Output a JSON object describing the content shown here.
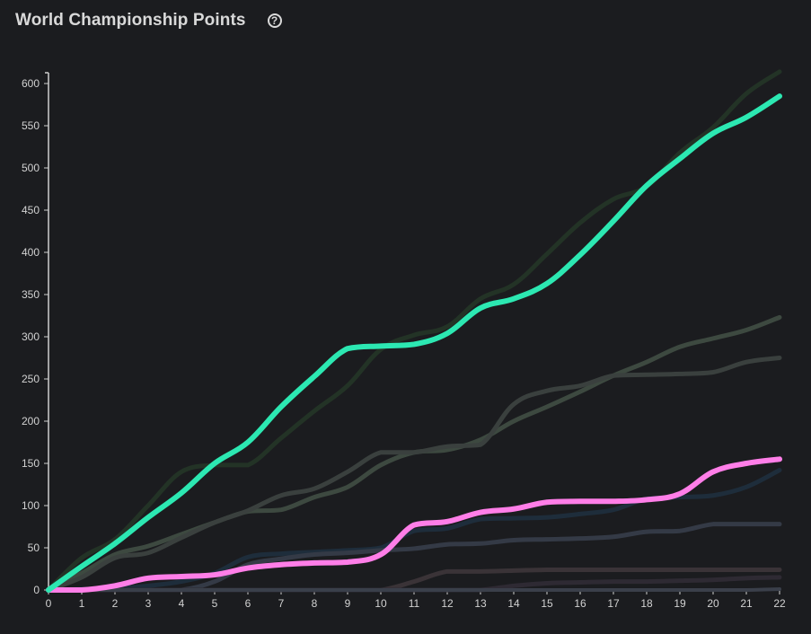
{
  "header": {
    "title": "World Championship Points",
    "help_icon": "question-circle-icon"
  },
  "chart_data": {
    "type": "line",
    "title": "World Championship Points",
    "xlabel": "",
    "ylabel": "",
    "xlim": [
      0,
      22
    ],
    "ylim": [
      0,
      600
    ],
    "x_ticks": [
      0,
      1,
      2,
      3,
      4,
      5,
      6,
      7,
      8,
      9,
      10,
      11,
      12,
      13,
      14,
      15,
      16,
      17,
      18,
      19,
      20,
      21,
      22
    ],
    "y_ticks": [
      0,
      50,
      100,
      150,
      200,
      250,
      300,
      350,
      400,
      450,
      500,
      550,
      600
    ],
    "grid": false,
    "legend": "none",
    "x": [
      0,
      1,
      2,
      3,
      4,
      5,
      6,
      7,
      8,
      9,
      10,
      11,
      12,
      13,
      14,
      15,
      16,
      17,
      18,
      19,
      20,
      21,
      22
    ],
    "series": [
      {
        "color": "#233326",
        "width": 5,
        "values": [
          0,
          38,
          60,
          100,
          140,
          148,
          148,
          180,
          212,
          242,
          285,
          302,
          312,
          345,
          362,
          398,
          435,
          463,
          478,
          518,
          548,
          588,
          614
        ]
      },
      {
        "color": "#3d4940",
        "width": 5,
        "values": [
          0,
          20,
          42,
          52,
          66,
          80,
          93,
          95,
          110,
          122,
          148,
          163,
          166,
          178,
          200,
          217,
          235,
          254,
          270,
          288,
          298,
          308,
          323
        ]
      },
      {
        "color": "#3a403e",
        "width": 5,
        "values": [
          0,
          15,
          38,
          44,
          62,
          80,
          94,
          112,
          120,
          140,
          163,
          163,
          170,
          172,
          220,
          236,
          242,
          254,
          255,
          256,
          258,
          270,
          275
        ]
      },
      {
        "color": "#1e2d3b",
        "width": 5,
        "values": [
          0,
          1,
          2,
          5,
          10,
          20,
          39,
          43,
          45,
          47,
          50,
          70,
          73,
          84,
          85,
          86,
          90,
          95,
          108,
          110,
          112,
          122,
          142
        ]
      },
      {
        "color": "#343a46",
        "width": 5,
        "values": [
          0,
          0,
          0,
          0,
          0,
          10,
          30,
          37,
          42,
          44,
          47,
          49,
          54,
          55,
          59,
          60,
          61,
          63,
          69,
          70,
          78,
          78,
          78
        ]
      },
      {
        "color": "#3a3337",
        "width": 5,
        "values": [
          0,
          0,
          0,
          0,
          0,
          0,
          0,
          0,
          0,
          0,
          0,
          10,
          22,
          22,
          23,
          24,
          24,
          24,
          24,
          24,
          24,
          24,
          24
        ]
      },
      {
        "color": "#2e2a33",
        "width": 5,
        "values": [
          0,
          0,
          0,
          0,
          0,
          0,
          0,
          0,
          0,
          0,
          0,
          0,
          0,
          0,
          5,
          8,
          9,
          10,
          10,
          11,
          12,
          14,
          15
        ]
      },
      {
        "color": "#3a3f4a",
        "width": 4,
        "values": [
          0,
          0,
          0,
          0,
          0,
          0,
          0,
          0,
          0,
          0,
          0,
          0,
          0,
          0,
          0,
          0,
          0,
          0,
          0,
          0,
          0,
          0,
          1
        ]
      },
      {
        "color": "#ff7ee8",
        "width": 6,
        "values": [
          0,
          0,
          5,
          14,
          16,
          18,
          26,
          30,
          32,
          33,
          42,
          77,
          81,
          92,
          96,
          104,
          105,
          105,
          107,
          114,
          140,
          150,
          155
        ]
      },
      {
        "color": "#2ce8b2",
        "width": 6,
        "values": [
          0,
          28,
          55,
          86,
          115,
          150,
          175,
          217,
          253,
          286,
          289,
          291,
          304,
          334,
          345,
          363,
          397,
          437,
          479,
          511,
          541,
          560,
          585
        ]
      }
    ]
  }
}
